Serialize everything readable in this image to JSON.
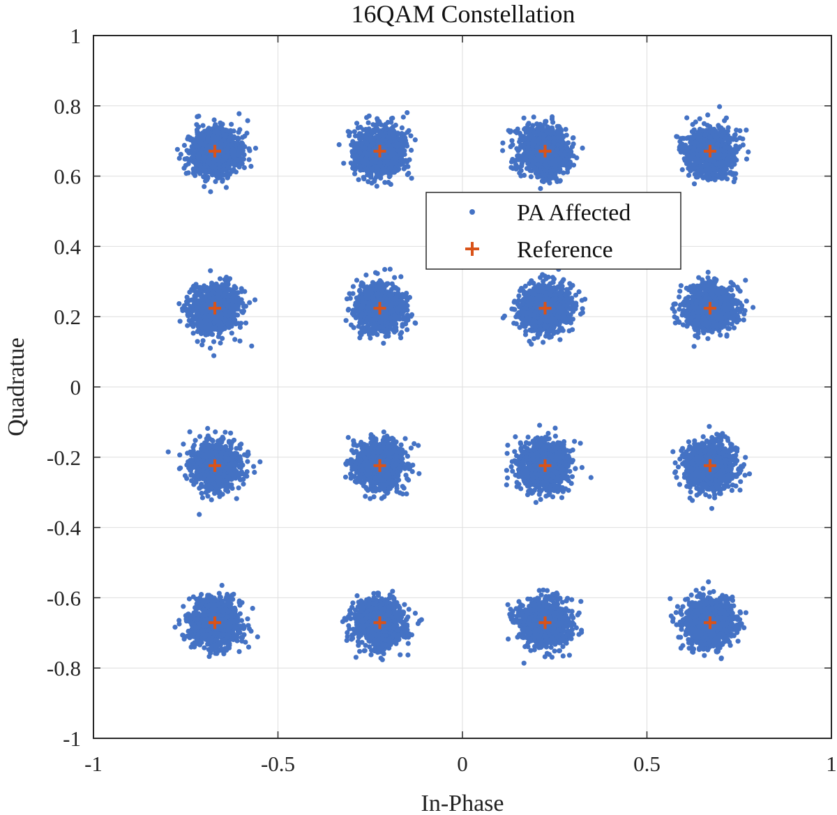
{
  "chart_data": {
    "type": "scatter",
    "title": "16QAM Constellation",
    "xlabel": "In-Phase",
    "ylabel": "Quadratue",
    "xlim": [
      -1,
      1
    ],
    "ylim": [
      -1,
      1
    ],
    "grid": true,
    "x_ticks": [
      -1,
      -0.5,
      0,
      0.5,
      1
    ],
    "x_tick_labels": [
      "-1",
      "-0.5",
      "0",
      "0.5",
      "1"
    ],
    "y_ticks": [
      -1,
      -0.8,
      -0.6,
      -0.4,
      -0.2,
      0,
      0.2,
      0.4,
      0.6,
      0.8,
      1
    ],
    "y_tick_labels": [
      "-1",
      "-0.8",
      "-0.6",
      "-0.4",
      "-0.2",
      "0",
      "0.2",
      "0.4",
      "0.6",
      "0.8",
      "1"
    ],
    "legend_position": "upper-center-right",
    "series": [
      {
        "name": "PA Affected",
        "marker": "dot",
        "color": "#4472C4",
        "cluster_centers_i": [
          -0.671,
          -0.224,
          0.224,
          0.671
        ],
        "cluster_centers_q": [
          -0.671,
          -0.224,
          0.224,
          0.671
        ],
        "noise_std": 0.033,
        "points_per_cluster": 1000
      },
      {
        "name": "Reference",
        "marker": "plus",
        "color": "#D95319",
        "points": [
          [
            -0.671,
            0.671
          ],
          [
            -0.224,
            0.671
          ],
          [
            0.224,
            0.671
          ],
          [
            0.671,
            0.671
          ],
          [
            -0.671,
            0.224
          ],
          [
            -0.224,
            0.224
          ],
          [
            0.224,
            0.224
          ],
          [
            0.671,
            0.224
          ],
          [
            -0.671,
            -0.224
          ],
          [
            -0.224,
            -0.224
          ],
          [
            0.224,
            -0.224
          ],
          [
            0.671,
            -0.224
          ],
          [
            -0.671,
            -0.671
          ],
          [
            -0.224,
            -0.671
          ],
          [
            0.224,
            -0.671
          ],
          [
            0.671,
            -0.671
          ]
        ]
      }
    ]
  }
}
